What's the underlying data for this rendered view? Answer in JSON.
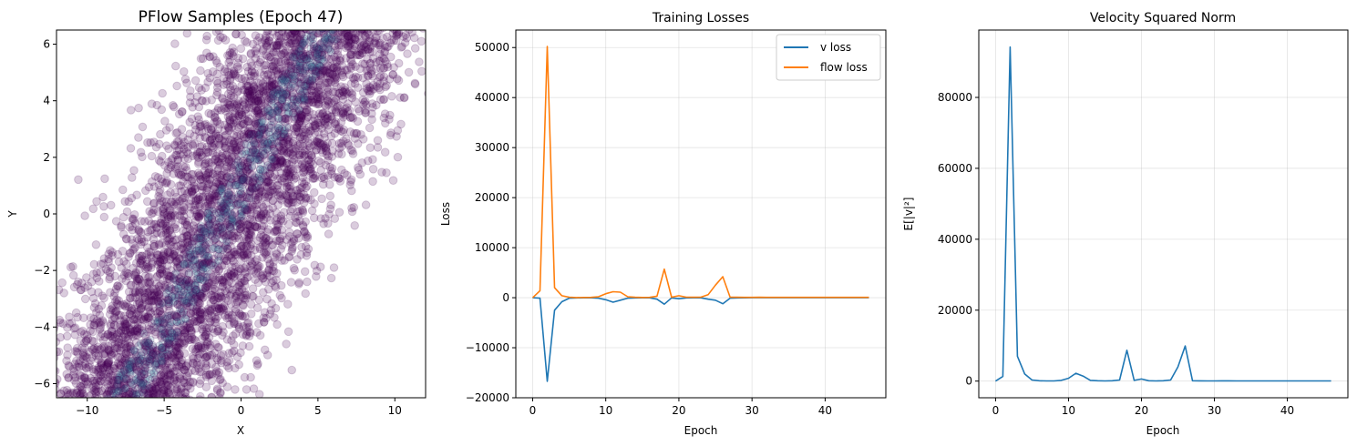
{
  "chart_data": [
    {
      "type": "scatter",
      "title": "PFlow Samples (Epoch 47)",
      "xlabel": "X",
      "ylabel": "Y",
      "xlim": [
        -12,
        12
      ],
      "ylim": [
        -6.5,
        6.5
      ],
      "xticks": [
        -10,
        -5,
        0,
        5,
        10
      ],
      "yticks": [
        -6,
        -4,
        -2,
        0,
        2,
        4,
        6
      ],
      "xtick_labels": [
        "−10",
        "−5",
        "0",
        "5",
        "10"
      ],
      "ytick_labels": [
        "−6",
        "−4",
        "−2",
        "0",
        "2",
        "4",
        "6"
      ],
      "grid": false,
      "point_color": "#440154",
      "dense_color": "#2f6a8e",
      "point_alpha": 0.2,
      "distribution": {
        "center_line_slope": 0.55,
        "center_line_intercept": 1.0,
        "x_spread_sd": 3.2,
        "approx_points": 5000
      }
    },
    {
      "type": "line",
      "title": "Training Losses",
      "xlabel": "Epoch",
      "ylabel": "Loss",
      "xlim": [
        -2.3,
        48.3
      ],
      "ylim": [
        -20000,
        53500
      ],
      "xticks": [
        0,
        10,
        20,
        30,
        40
      ],
      "yticks": [
        -20000,
        -10000,
        0,
        10000,
        20000,
        30000,
        40000,
        50000
      ],
      "xtick_labels": [
        "0",
        "10",
        "20",
        "30",
        "40"
      ],
      "ytick_labels": [
        "−20000",
        "−10000",
        "0",
        "10000",
        "20000",
        "30000",
        "40000",
        "50000"
      ],
      "grid": true,
      "legend": "top-right",
      "x": [
        0,
        1,
        2,
        3,
        4,
        5,
        6,
        7,
        8,
        9,
        10,
        11,
        12,
        13,
        14,
        15,
        16,
        17,
        18,
        19,
        20,
        21,
        22,
        23,
        24,
        25,
        26,
        27,
        28,
        29,
        30,
        31,
        32,
        33,
        34,
        35,
        36,
        37,
        38,
        39,
        40,
        41,
        42,
        43,
        44,
        45,
        46
      ],
      "series": [
        {
          "name": "v loss",
          "color": "#1f77b4",
          "values": [
            0,
            -100,
            -16700,
            -2500,
            -800,
            -100,
            -50,
            -30,
            -20,
            -100,
            -400,
            -900,
            -500,
            -100,
            -50,
            -30,
            -20,
            -300,
            -1300,
            -50,
            -200,
            -50,
            -30,
            -30,
            -300,
            -500,
            -1200,
            -100,
            -50,
            -20,
            -10,
            -10,
            -10,
            -10,
            -10,
            -10,
            -10,
            -10,
            -10,
            -10,
            -10,
            -10,
            -10,
            -10,
            -10,
            -10,
            -10
          ]
        },
        {
          "name": "flow loss",
          "color": "#ff7f0e",
          "values": [
            0,
            1400,
            50200,
            2000,
            400,
            100,
            30,
            50,
            60,
            200,
            800,
            1200,
            1100,
            200,
            80,
            40,
            60,
            300,
            5700,
            100,
            400,
            100,
            80,
            100,
            600,
            2500,
            4200,
            100,
            80,
            60,
            60,
            80,
            70,
            60,
            60,
            60,
            60,
            60,
            60,
            60,
            60,
            60,
            60,
            60,
            60,
            60,
            60
          ]
        }
      ]
    },
    {
      "type": "line",
      "title": "Velocity Squared Norm",
      "xlabel": "Epoch",
      "ylabel": "E[|v|²]",
      "xlim": [
        -2.3,
        48.3
      ],
      "ylim": [
        -4700,
        99000
      ],
      "xticks": [
        0,
        10,
        20,
        30,
        40
      ],
      "yticks": [
        0,
        20000,
        40000,
        60000,
        80000
      ],
      "xtick_labels": [
        "0",
        "10",
        "20",
        "30",
        "40"
      ],
      "ytick_labels": [
        "0",
        "20000",
        "40000",
        "60000",
        "80000"
      ],
      "grid": true,
      "x": [
        0,
        1,
        2,
        3,
        4,
        5,
        6,
        7,
        8,
        9,
        10,
        11,
        12,
        13,
        14,
        15,
        16,
        17,
        18,
        19,
        20,
        21,
        22,
        23,
        24,
        25,
        26,
        27,
        28,
        29,
        30,
        31,
        32,
        33,
        34,
        35,
        36,
        37,
        38,
        39,
        40,
        41,
        42,
        43,
        44,
        45,
        46
      ],
      "series": [
        {
          "color": "#1f77b4",
          "values": [
            0,
            1300,
            94200,
            7000,
            2000,
            300,
            100,
            50,
            60,
            200,
            800,
            2200,
            1400,
            200,
            100,
            60,
            100,
            300,
            8700,
            200,
            600,
            100,
            50,
            100,
            300,
            4000,
            9900,
            100,
            80,
            60,
            60,
            80,
            70,
            60,
            60,
            60,
            60,
            60,
            60,
            60,
            60,
            60,
            60,
            60,
            60,
            60,
            60
          ]
        }
      ]
    }
  ]
}
